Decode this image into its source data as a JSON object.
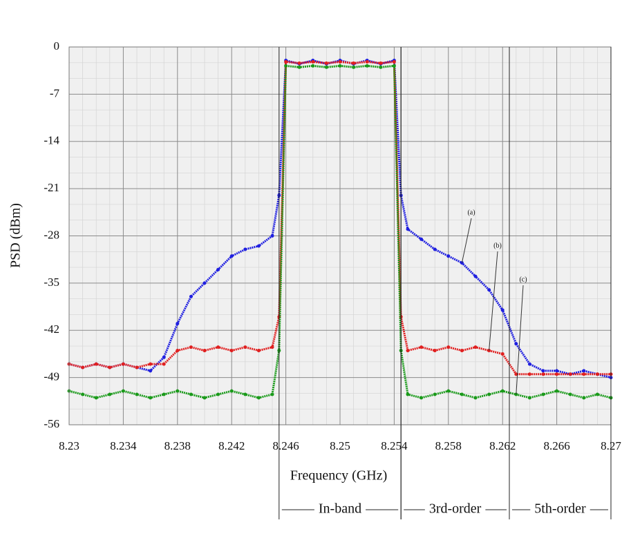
{
  "chart_data": {
    "type": "line",
    "x_label": "Frequency (GHz)",
    "y_label": "PSD (dBm)",
    "x": [
      8.23,
      8.231,
      8.232,
      8.233,
      8.234,
      8.235,
      8.236,
      8.237,
      8.238,
      8.239,
      8.24,
      8.241,
      8.242,
      8.243,
      8.244,
      8.245,
      8.2455,
      8.246,
      8.247,
      8.248,
      8.249,
      8.25,
      8.251,
      8.252,
      8.253,
      8.254,
      8.2545,
      8.255,
      8.256,
      8.257,
      8.258,
      8.259,
      8.26,
      8.261,
      8.262,
      8.263,
      8.264,
      8.265,
      8.266,
      8.267,
      8.268,
      8.269,
      8.27
    ],
    "series": [
      {
        "name": "(a)",
        "color": "#1f1fe0",
        "values": [
          -47,
          -47.5,
          -47,
          -47.5,
          -47,
          -47.5,
          -48,
          -46,
          -41,
          -37,
          -35,
          -33,
          -31,
          -30,
          -29.5,
          -28,
          -22,
          -2,
          -2.5,
          -2,
          -2.5,
          -2,
          -2.5,
          -2,
          -2.5,
          -2,
          -22,
          -27,
          -28.5,
          -30,
          -31,
          -32,
          -34,
          -36,
          -39,
          -44,
          -47,
          -48,
          -48,
          -48.5,
          -48,
          -48.5,
          -49
        ]
      },
      {
        "name": "(b)",
        "color": "#e01f1f",
        "values": [
          -47,
          -47.5,
          -47,
          -47.5,
          -47,
          -47.5,
          -47,
          -47,
          -45,
          -44.5,
          -45,
          -44.5,
          -45,
          -44.5,
          -45,
          -44.5,
          -40,
          -2.2,
          -2.4,
          -2.2,
          -2.4,
          -2.2,
          -2.4,
          -2.2,
          -2.4,
          -2.2,
          -40,
          -45,
          -44.5,
          -45,
          -44.5,
          -45,
          -44.5,
          -45,
          -45.5,
          -48.5,
          -48.5,
          -48.5,
          -48.5,
          -48.5,
          -48.5,
          -48.5,
          -48.5
        ]
      },
      {
        "name": "(c)",
        "color": "#1a9a1a",
        "values": [
          -51,
          -51.5,
          -52,
          -51.5,
          -51,
          -51.5,
          -52,
          -51.5,
          -51,
          -51.5,
          -52,
          -51.5,
          -51,
          -51.5,
          -52,
          -51.5,
          -45,
          -2.8,
          -3,
          -2.8,
          -3,
          -2.8,
          -3,
          -2.8,
          -3,
          -2.8,
          -45,
          -51.5,
          -52,
          -51.5,
          -51,
          -51.5,
          -52,
          -51.5,
          -51,
          -51.5,
          -52,
          -51.5,
          -51,
          -51.5,
          -52,
          -51.5,
          -52
        ]
      }
    ],
    "xlim": [
      8.23,
      8.27
    ],
    "ylim": [
      -56,
      0
    ],
    "xticks": [
      8.23,
      8.234,
      8.238,
      8.242,
      8.246,
      8.25,
      8.254,
      8.258,
      8.262,
      8.266,
      8.27
    ],
    "yticks": [
      0,
      -7,
      -14,
      -21,
      -28,
      -35,
      -42,
      -49,
      -56
    ],
    "grid": true,
    "regions": [
      {
        "label": "In-band",
        "range": [
          8.2455,
          8.2545
        ]
      },
      {
        "label": "3rd-order",
        "range": [
          8.2545,
          8.2625
        ]
      },
      {
        "label": "5th-order",
        "range": [
          8.2625,
          8.27
        ]
      }
    ]
  }
}
